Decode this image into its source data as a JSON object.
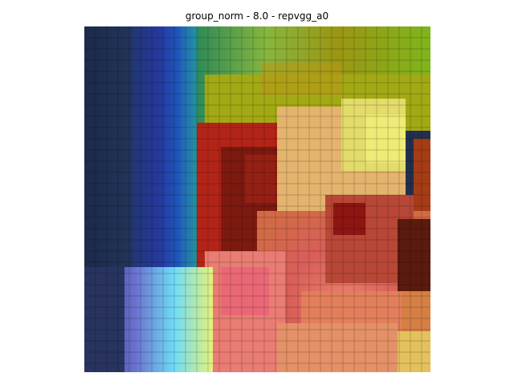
{
  "figure": {
    "title": "group_norm - 8.0 - repvgg_a0"
  },
  "image": {
    "subject": "pixelated-saliency-overlay",
    "palette": {
      "navy": "#1c2a4a",
      "blue": "#2c3fb4",
      "teal": "#23a58a",
      "green": "#86c23a",
      "olive": "#a0a215",
      "yellow": "#e4e35d",
      "orange": "#d37c3f",
      "red": "#c92e2e",
      "darkred": "#7e1a14",
      "pink": "#e86b78",
      "skin": "#e8b96d",
      "lavender": "#7b7fd8",
      "cyan": "#57efff"
    }
  }
}
